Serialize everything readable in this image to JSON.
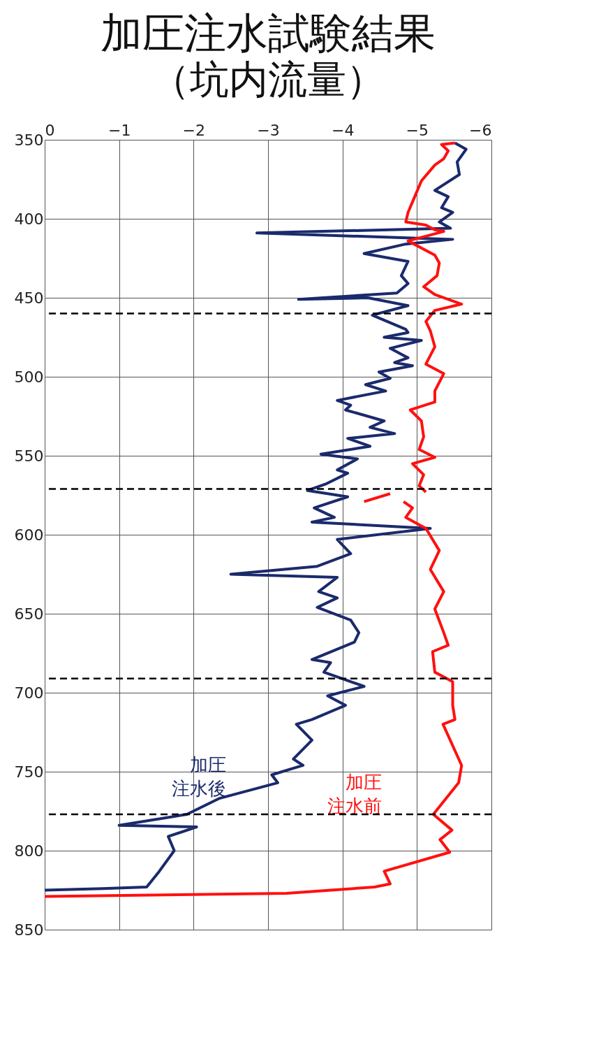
{
  "chart_data": {
    "type": "line",
    "title": "加圧注水試験結果",
    "subtitle": "（坑内流量）",
    "xlim": [
      0,
      -6
    ],
    "xticks": [
      0,
      -1,
      -2,
      -3,
      -4,
      -5,
      -6
    ],
    "ylim": [
      850,
      350
    ],
    "yticks": [
      350,
      400,
      450,
      500,
      550,
      600,
      650,
      700,
      750,
      800,
      850
    ],
    "grid": true,
    "legend": false,
    "line_style": "solid",
    "marker": "none",
    "series": [
      {
        "name": "加圧注水後",
        "color": "#1a2a6c",
        "x": [
          -5.51,
          -5.66,
          -5.54,
          -5.57,
          -5.24,
          -5.42,
          -5.33,
          -5.48,
          -5.3,
          -5.45,
          -2.85,
          -5.48,
          -4.85,
          -4.29,
          -4.88,
          -4.79,
          -4.88,
          -4.73,
          -3.41,
          -4.34,
          -4.88,
          -4.4,
          -4.85,
          -4.88,
          -4.56,
          -5.06,
          -4.64,
          -4.88,
          -4.7,
          -4.94,
          -4.49,
          -4.64,
          -4.31,
          -4.58,
          -3.93,
          -4.11,
          -4.04,
          -4.56,
          -4.37,
          -4.7,
          -4.07,
          -4.37,
          -3.71,
          -4.2,
          -3.93,
          -4.07,
          -3.77,
          -3.53,
          -4.07,
          -3.62,
          -3.89,
          -3.59,
          -5.18,
          -3.93,
          -4.11,
          -3.66,
          -2.5,
          -3.93,
          -3.68,
          -3.93,
          -3.66,
          -4.11,
          -4.22,
          -4.16,
          -3.59,
          -3.84,
          -3.75,
          -4.29,
          -3.8,
          -4.04,
          -3.59,
          -3.38,
          -3.59,
          -3.34,
          -3.47,
          -3.05,
          -3.13,
          -2.34,
          -1.91,
          -1.0,
          -2.04,
          -1.66,
          -1.74,
          -1.54,
          -1.37,
          -0.78,
          0
        ],
        "values": [
          352,
          356,
          364,
          372,
          382,
          386,
          393,
          396,
          402,
          406,
          409,
          413,
          416,
          422,
          427,
          436,
          441,
          447,
          451,
          450,
          455,
          461,
          470,
          472,
          475,
          477,
          482,
          488,
          491,
          493,
          497,
          501,
          505,
          509,
          515,
          518,
          521,
          528,
          532,
          536,
          539,
          544,
          549,
          552,
          559,
          561,
          568,
          572,
          576,
          583,
          589,
          592,
          596,
          603,
          612,
          620,
          625,
          627,
          636,
          640,
          646,
          654,
          662,
          668,
          679,
          681,
          687,
          696,
          702,
          708,
          717,
          720,
          730,
          742,
          746,
          752,
          757,
          767,
          777,
          784,
          785,
          791,
          800,
          813,
          823,
          824,
          825
        ]
      },
      {
        "name": "加圧注水前",
        "color": "#ff1010",
        "x": [
          -5.51,
          -5.33,
          -5.42,
          -5.36,
          -5.24,
          -5.06,
          -4.97,
          -4.88,
          -4.85,
          -5.12,
          -5.24,
          -5.36,
          -4.88,
          -5.24,
          -5.3,
          -5.27,
          -5.09,
          -5.24,
          -5.6,
          -5.24,
          -5.12,
          -5.18,
          -5.24,
          -5.12,
          -5.36,
          -5.24,
          -5.24,
          -4.91,
          -5.06,
          -5.09,
          -5.03,
          -5.24,
          -4.94,
          -5.09,
          -5.03,
          -5.12,
          null,
          -4.64,
          -4.29,
          null,
          -4.82,
          -4.94,
          -4.85,
          -5.12,
          -5.3,
          -5.18,
          -5.36,
          -5.24,
          -5.36,
          -5.42,
          -5.21,
          -5.24,
          -5.48,
          -5.48,
          -5.51,
          -5.35,
          -5.6,
          -5.56,
          -5.22,
          -5.47,
          -5.31,
          -5.44,
          -4.56,
          -4.64,
          -4.43,
          -3.25,
          0
        ],
        "values": [
          352,
          353,
          357,
          362,
          366,
          376,
          386,
          396,
          402,
          404,
          407,
          408,
          414,
          423,
          428,
          436,
          443,
          448,
          454,
          458,
          465,
          471,
          481,
          492,
          498,
          509,
          516,
          521,
          528,
          538,
          546,
          551,
          555,
          562,
          569,
          573,
          null,
          574,
          579,
          null,
          579,
          583,
          589,
          596,
          610,
          622,
          636,
          647,
          662,
          670,
          674,
          687,
          693,
          708,
          717,
          720,
          746,
          757,
          777,
          787,
          793,
          801,
          813,
          821,
          823,
          827,
          829
        ]
      }
    ],
    "ref_lines": [
      {
        "axis": "y",
        "value": 460,
        "color": "#000000",
        "line_style": "dashed"
      },
      {
        "axis": "y",
        "value": 571,
        "color": "#000000",
        "line_style": "dashed"
      },
      {
        "axis": "y",
        "value": 691,
        "color": "#000000",
        "line_style": "dashed"
      },
      {
        "axis": "y",
        "value": 777,
        "color": "#000000",
        "line_style": "dashed"
      }
    ]
  }
}
